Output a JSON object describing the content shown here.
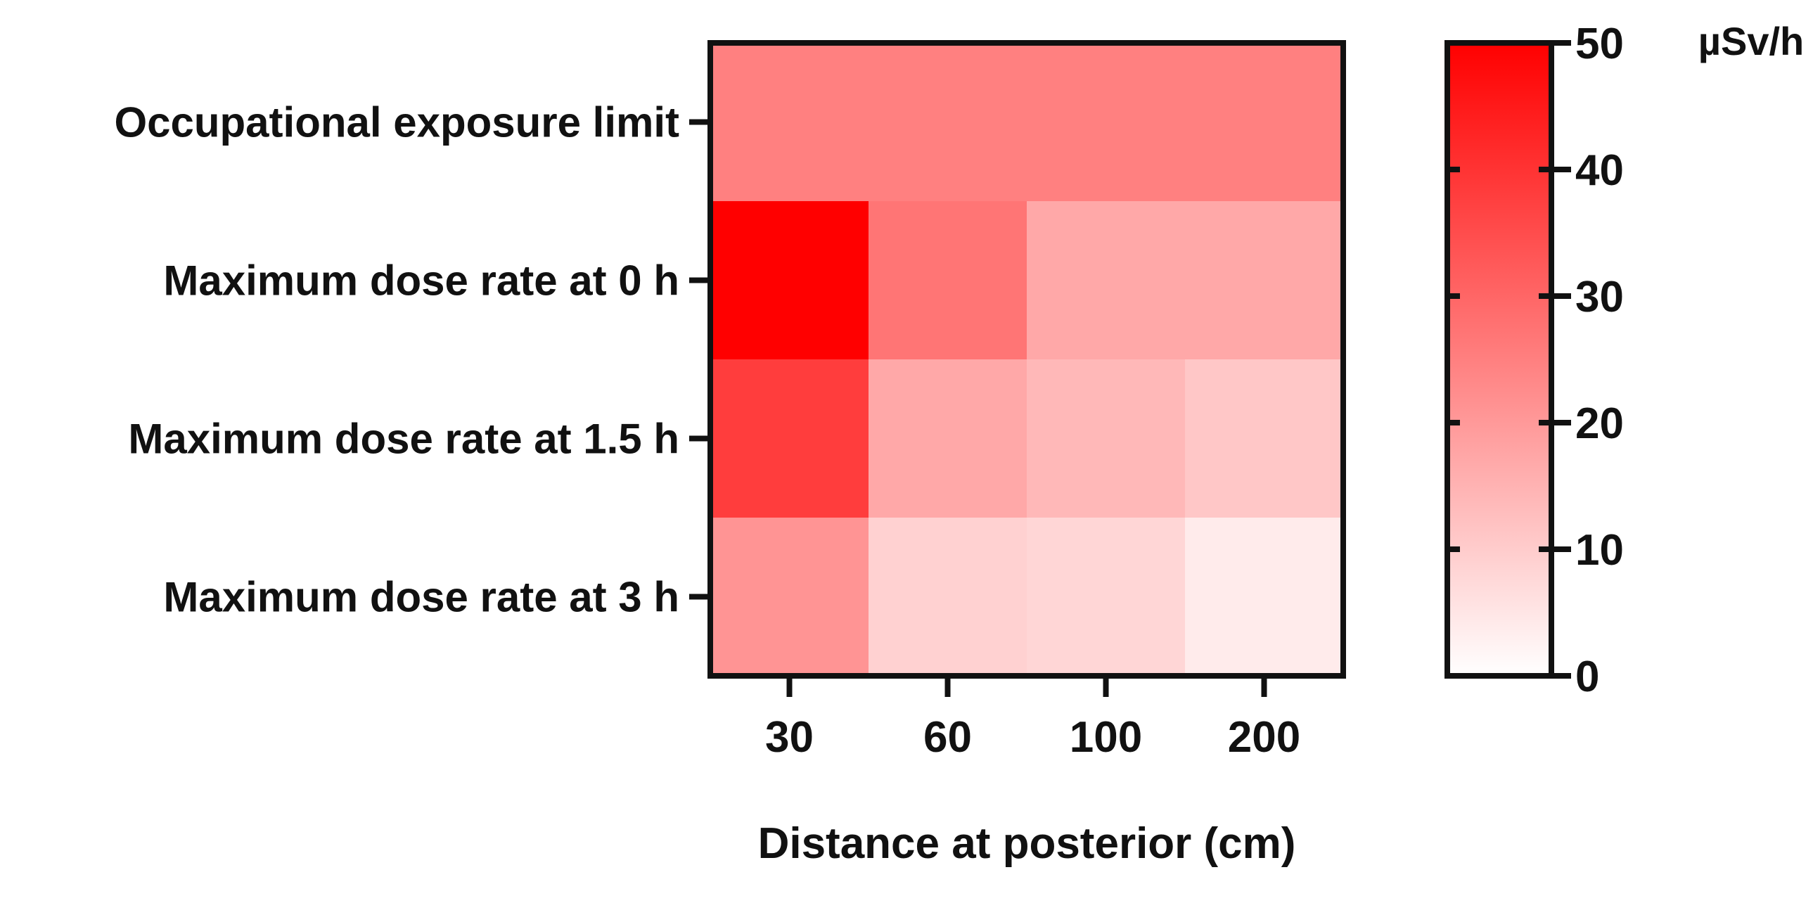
{
  "chart_data": {
    "type": "heatmap",
    "title": "",
    "xlabel": "Distance at posterior (cm)",
    "ylabel": "",
    "x_categories": [
      "30",
      "60",
      "100",
      "200"
    ],
    "y_categories": [
      "Occupational exposure limit",
      "Maximum dose rate at 0 h",
      "Maximum dose rate at 1.5 h",
      "Maximum dose rate at 3 h"
    ],
    "values": [
      [
        25,
        25,
        25,
        25
      ],
      [
        50,
        27,
        17,
        17
      ],
      [
        38,
        17,
        14,
        11
      ],
      [
        21,
        9,
        8,
        4
      ]
    ],
    "colorbar": {
      "min": 0,
      "max": 50,
      "ticks": [
        "0",
        "10",
        "20",
        "30",
        "40",
        "50"
      ],
      "unit": "µSv/h",
      "color_low": "#ffffff",
      "color_high": "#ff0000"
    },
    "grid": false,
    "legend": "right colorbar"
  }
}
